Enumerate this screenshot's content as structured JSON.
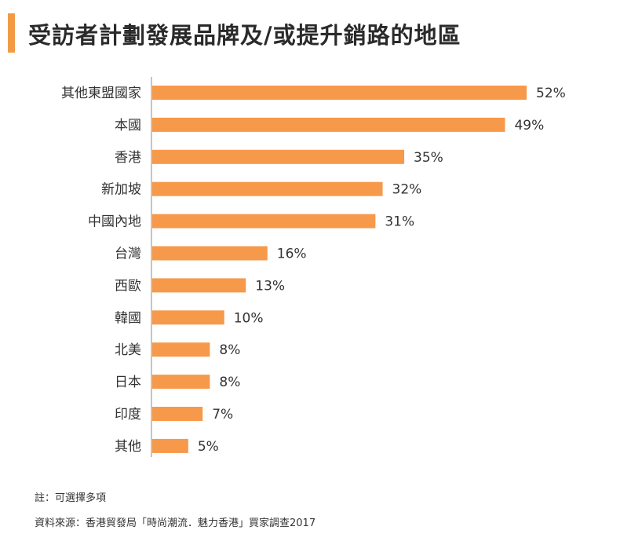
{
  "title": "受訪者計劃發展品牌及/或提升銷路的地區",
  "colors": {
    "accent": "#f39a46",
    "bar": "#f7994a",
    "axis": "#888888"
  },
  "chart_data": {
    "type": "bar",
    "orientation": "horizontal",
    "categories": [
      "其他東盟國家",
      "本國",
      "香港",
      "新加坡",
      "中國內地",
      "台灣",
      "西歐",
      "韓國",
      "北美",
      "日本",
      "印度",
      "其他"
    ],
    "values": [
      52,
      49,
      35,
      32,
      31,
      16,
      13,
      10,
      8,
      8,
      7,
      5
    ],
    "value_labels": [
      "52%",
      "49%",
      "35%",
      "32%",
      "31%",
      "16%",
      "13%",
      "10%",
      "8%",
      "8%",
      "7%",
      "5%"
    ],
    "unit": "%",
    "xlim": [
      0,
      52
    ],
    "grid": false,
    "legend": "none"
  },
  "notes": {
    "note": "註：可選擇多項",
    "source": "資料來源：香港貿發局「時尚潮流．魅力香港」買家調查2017"
  }
}
